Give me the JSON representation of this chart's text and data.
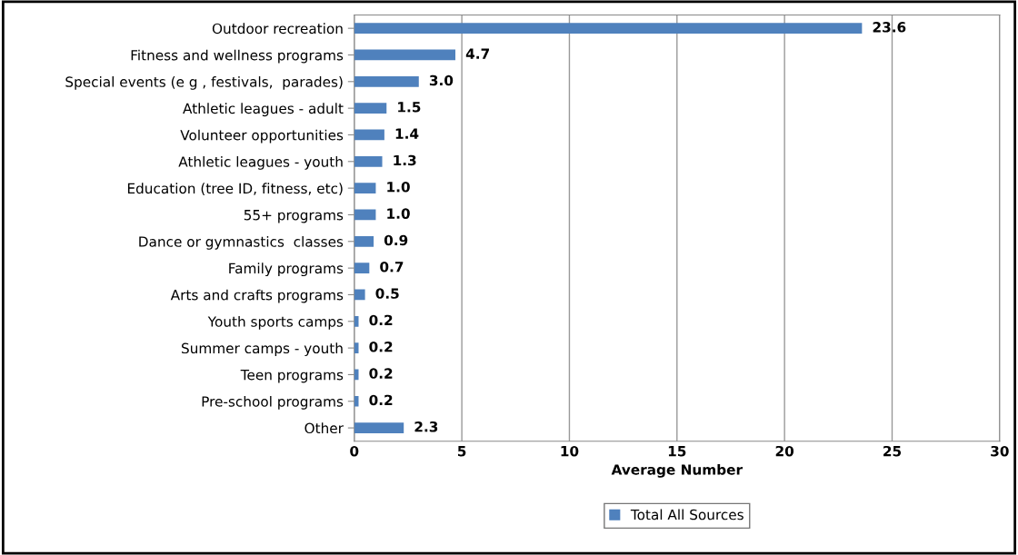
{
  "chart_data": {
    "type": "bar",
    "orientation": "horizontal",
    "xlabel": "Average Number",
    "categories": [
      "Outdoor recreation",
      "Fitness and wellness programs",
      "Special events (e g , festivals,  parades)",
      "Athletic leagues - adult",
      "Volunteer opportunities",
      "Athletic leagues - youth",
      "Education (tree ID, fitness, etc)",
      "55+ programs",
      "Dance or gymnastics  classes",
      "Family programs",
      "Arts and crafts programs",
      "Youth sports camps",
      "Summer camps - youth",
      "Teen programs",
      "Pre-school programs",
      "Other"
    ],
    "series": [
      {
        "name": "Total All Sources",
        "color": "#4f81bd",
        "values": [
          23.6,
          4.7,
          3.0,
          1.5,
          1.4,
          1.3,
          1.0,
          1.0,
          0.9,
          0.7,
          0.5,
          0.2,
          0.2,
          0.2,
          0.2,
          2.3
        ],
        "value_labels": [
          "23.6",
          "4.7",
          "3.0",
          "1.5",
          "1.4",
          "1.3",
          "1.0",
          "1.0",
          "0.9",
          "0.7",
          "0.5",
          "0.2",
          "0.2",
          "0.2",
          "0.2",
          "2.3"
        ]
      }
    ],
    "xlim": [
      0,
      30
    ],
    "xticks": [
      0,
      5,
      10,
      15,
      20,
      25,
      30
    ],
    "grid": "x",
    "legend": "bottom"
  }
}
